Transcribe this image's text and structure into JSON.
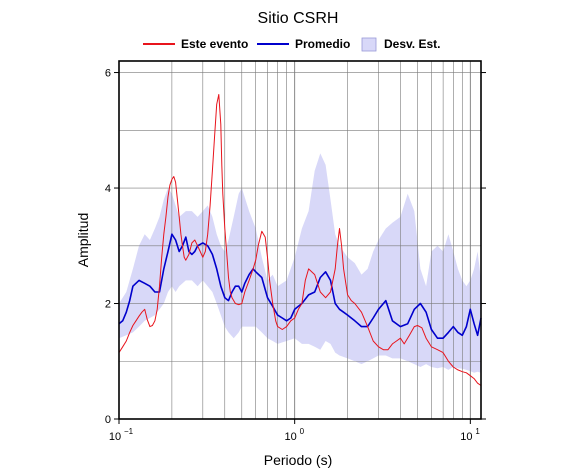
{
  "chart_data": {
    "type": "line",
    "title": "Sitio CSRH",
    "xlabel": "Periodo (s)",
    "ylabel": "Amplitud",
    "x_scale": "log",
    "xlim": [
      0.1,
      11.5
    ],
    "ylim": [
      0,
      6.2
    ],
    "grid": true,
    "legend_position": "top",
    "x_ticks": [
      {
        "value": 0.1,
        "base": "10",
        "exp": "−1"
      },
      {
        "value": 1,
        "base": "10",
        "exp": "0"
      },
      {
        "value": 10,
        "base": "10",
        "exp": "1"
      }
    ],
    "y_ticks": [
      0,
      2,
      4,
      6
    ],
    "series": [
      {
        "name": "Este evento",
        "color": "#e8141c",
        "x": [
          0.1,
          0.105,
          0.11,
          0.115,
          0.12,
          0.125,
          0.13,
          0.135,
          0.14,
          0.145,
          0.15,
          0.155,
          0.16,
          0.165,
          0.17,
          0.175,
          0.18,
          0.185,
          0.19,
          0.195,
          0.2,
          0.205,
          0.21,
          0.215,
          0.22,
          0.225,
          0.23,
          0.235,
          0.24,
          0.25,
          0.26,
          0.27,
          0.28,
          0.29,
          0.3,
          0.31,
          0.32,
          0.33,
          0.34,
          0.35,
          0.36,
          0.37,
          0.38,
          0.385,
          0.39,
          0.4,
          0.41,
          0.42,
          0.43,
          0.44,
          0.46,
          0.48,
          0.5,
          0.52,
          0.55,
          0.58,
          0.6,
          0.62,
          0.65,
          0.68,
          0.7,
          0.72,
          0.75,
          0.78,
          0.8,
          0.85,
          0.9,
          0.95,
          1.0,
          1.05,
          1.1,
          1.15,
          1.2,
          1.3,
          1.4,
          1.5,
          1.6,
          1.7,
          1.75,
          1.8,
          1.85,
          1.9,
          2.0,
          2.1,
          2.2,
          2.4,
          2.6,
          2.8,
          3.0,
          3.2,
          3.4,
          3.6,
          3.8,
          4.0,
          4.2,
          4.5,
          4.8,
          5.0,
          5.3,
          5.6,
          6.0,
          6.5,
          7.0,
          7.5,
          8.0,
          8.5,
          9.0,
          9.5,
          10.0,
          10.5,
          11.0,
          11.5
        ],
        "y": [
          1.15,
          1.25,
          1.35,
          1.5,
          1.62,
          1.7,
          1.78,
          1.85,
          1.9,
          1.72,
          1.6,
          1.62,
          1.7,
          1.9,
          2.3,
          2.8,
          3.2,
          3.5,
          3.85,
          4.05,
          4.15,
          4.2,
          4.1,
          3.8,
          3.5,
          3.2,
          3.0,
          2.8,
          2.75,
          2.85,
          3.05,
          3.1,
          3.0,
          2.9,
          2.8,
          2.9,
          3.2,
          3.7,
          4.3,
          4.9,
          5.45,
          5.62,
          5.1,
          4.4,
          3.9,
          3.3,
          2.9,
          2.45,
          2.2,
          2.1,
          2.0,
          1.98,
          2.0,
          2.2,
          2.4,
          2.6,
          2.75,
          3.0,
          3.25,
          3.15,
          2.8,
          2.4,
          2.0,
          1.7,
          1.6,
          1.55,
          1.6,
          1.7,
          1.75,
          1.9,
          2.0,
          2.4,
          2.6,
          2.5,
          2.2,
          2.1,
          2.2,
          2.6,
          3.0,
          3.3,
          3.0,
          2.6,
          2.15,
          2.05,
          2.0,
          1.85,
          1.6,
          1.35,
          1.25,
          1.2,
          1.2,
          1.3,
          1.35,
          1.4,
          1.3,
          1.45,
          1.6,
          1.62,
          1.58,
          1.4,
          1.25,
          1.2,
          1.15,
          1.0,
          0.9,
          0.85,
          0.82,
          0.8,
          0.75,
          0.7,
          0.62,
          0.58
        ]
      },
      {
        "name": "Promedio",
        "color": "#0000cc",
        "x": [
          0.1,
          0.105,
          0.11,
          0.115,
          0.12,
          0.13,
          0.14,
          0.15,
          0.16,
          0.17,
          0.18,
          0.19,
          0.2,
          0.21,
          0.22,
          0.23,
          0.24,
          0.25,
          0.26,
          0.27,
          0.28,
          0.3,
          0.32,
          0.34,
          0.36,
          0.38,
          0.4,
          0.42,
          0.44,
          0.46,
          0.48,
          0.5,
          0.52,
          0.55,
          0.58,
          0.6,
          0.65,
          0.7,
          0.75,
          0.8,
          0.85,
          0.9,
          0.95,
          1.0,
          1.1,
          1.2,
          1.3,
          1.4,
          1.5,
          1.6,
          1.7,
          1.8,
          1.9,
          2.0,
          2.2,
          2.4,
          2.6,
          2.8,
          3.0,
          3.3,
          3.6,
          4.0,
          4.4,
          4.8,
          5.2,
          5.6,
          6.0,
          6.5,
          7.0,
          7.5,
          8.0,
          8.5,
          9.0,
          9.5,
          10.0,
          10.5,
          11.0,
          11.5
        ],
        "y": [
          1.65,
          1.7,
          1.85,
          2.05,
          2.3,
          2.4,
          2.35,
          2.3,
          2.2,
          2.2,
          2.6,
          2.9,
          3.2,
          3.1,
          2.9,
          3.0,
          3.15,
          2.9,
          2.85,
          2.9,
          3.0,
          3.05,
          3.0,
          2.85,
          2.6,
          2.3,
          2.1,
          2.05,
          2.2,
          2.3,
          2.3,
          2.2,
          2.35,
          2.5,
          2.6,
          2.55,
          2.45,
          2.1,
          1.95,
          1.8,
          1.75,
          1.7,
          1.75,
          1.9,
          2.0,
          2.15,
          2.2,
          2.45,
          2.55,
          2.4,
          2.0,
          1.9,
          1.85,
          1.8,
          1.7,
          1.6,
          1.6,
          1.75,
          1.9,
          2.05,
          1.7,
          1.6,
          1.65,
          1.9,
          2.0,
          1.85,
          1.55,
          1.4,
          1.4,
          1.5,
          1.6,
          1.5,
          1.45,
          1.6,
          1.9,
          1.65,
          1.45,
          1.75
        ]
      }
    ],
    "band": {
      "name": "Desv. Est.",
      "color": "#d8d8f8",
      "x": [
        0.1,
        0.11,
        0.12,
        0.13,
        0.14,
        0.15,
        0.16,
        0.17,
        0.18,
        0.19,
        0.2,
        0.21,
        0.22,
        0.24,
        0.26,
        0.28,
        0.3,
        0.32,
        0.34,
        0.36,
        0.38,
        0.4,
        0.42,
        0.45,
        0.48,
        0.5,
        0.55,
        0.6,
        0.65,
        0.7,
        0.75,
        0.8,
        0.9,
        1.0,
        1.1,
        1.2,
        1.3,
        1.4,
        1.5,
        1.6,
        1.7,
        1.8,
        2.0,
        2.2,
        2.4,
        2.6,
        2.8,
        3.0,
        3.3,
        3.6,
        4.0,
        4.4,
        4.8,
        5.2,
        5.6,
        6.0,
        6.5,
        7.0,
        7.5,
        8.0,
        8.5,
        9.0,
        9.5,
        10.0,
        10.5,
        11.0,
        11.5
      ],
      "upper": [
        2.0,
        2.2,
        2.6,
        3.0,
        3.2,
        3.1,
        3.3,
        3.5,
        3.8,
        4.0,
        3.9,
        3.7,
        3.5,
        3.6,
        3.6,
        3.5,
        3.6,
        3.7,
        3.5,
        3.2,
        3.0,
        2.9,
        3.1,
        3.5,
        3.9,
        4.0,
        3.6,
        3.3,
        2.8,
        2.4,
        2.5,
        2.3,
        2.4,
        2.8,
        3.3,
        3.6,
        4.3,
        4.6,
        4.4,
        3.8,
        3.2,
        3.0,
        2.8,
        2.7,
        2.5,
        2.6,
        2.9,
        3.1,
        3.3,
        3.4,
        3.5,
        3.9,
        3.6,
        2.6,
        2.3,
        2.9,
        3.0,
        2.9,
        3.2,
        2.9,
        2.6,
        2.4,
        2.3,
        2.4,
        2.6,
        2.9,
        2.4
      ],
      "lower": [
        1.4,
        1.45,
        1.5,
        1.6,
        1.7,
        1.75,
        1.8,
        1.9,
        2.0,
        2.2,
        2.3,
        2.2,
        2.3,
        2.4,
        2.4,
        2.3,
        2.4,
        2.3,
        2.2,
        2.0,
        1.8,
        1.6,
        1.5,
        1.4,
        1.5,
        1.6,
        1.6,
        1.6,
        1.5,
        1.4,
        1.35,
        1.3,
        1.35,
        1.4,
        1.3,
        1.3,
        1.25,
        1.2,
        1.35,
        1.3,
        1.15,
        1.1,
        1.05,
        1.0,
        0.95,
        1.0,
        1.05,
        1.1,
        1.1,
        1.05,
        1.05,
        1.0,
        0.95,
        0.9,
        0.95,
        0.9,
        0.88,
        0.9,
        0.85,
        0.9,
        0.88,
        0.87,
        0.85,
        0.83,
        0.8,
        0.82,
        0.8
      ]
    }
  }
}
